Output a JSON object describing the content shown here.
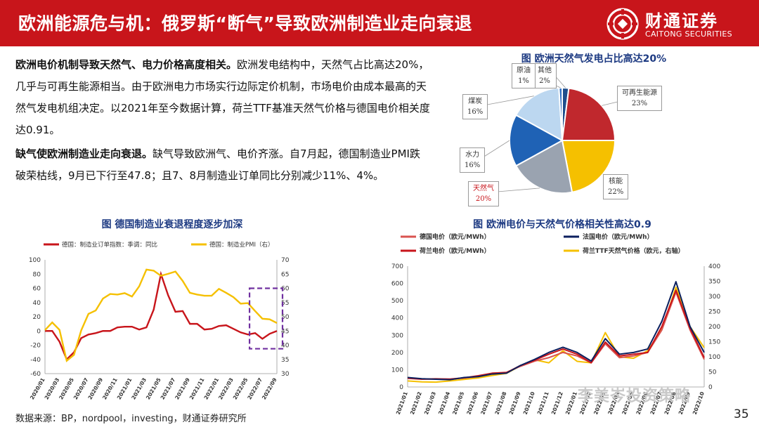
{
  "header": {
    "title": "欧洲能源危与机：俄罗斯“断气”导致欧洲制造业走向衰退",
    "logo_cn": "财通证券",
    "logo_en": "CAITONG SECURITIES"
  },
  "paragraphs": [
    {
      "lead": "欧洲电价机制导致天然气、电力价格高度相关。",
      "body": "欧洲发电结构中，天然气占比高达20%，几乎与可再生能源相当。由于欧洲电力市场实行边际定价机制，市场电价由成本最高的天然气发电机组决定。以2021年至今数据计算，荷兰TTF基准天然气价格与德国电价相关度达0.91。"
    },
    {
      "lead": "缺气使欧洲制造业走向衰退。",
      "body": "缺气导致欧洲气、电价齐涨。自7月起，德国制造业PMI跌破荣枯线，9月已下行至47.8；且7、8月制造业订单同比分别减少11%、4%。"
    }
  ],
  "captions": {
    "pie": "图 欧洲天然气发电占比高达20%",
    "germany": "图 德国制造业衰退程度逐步加深",
    "prices": "图 欧洲电价与天然气价格相关性高达0.9"
  },
  "source": "数据来源：BP，nordpool，investing，财通证券研究所",
  "page_number": "35",
  "watermark": "李美岑投资策略",
  "chart_data": [
    {
      "type": "pie",
      "title": "图 欧洲天然气发电占比高达20%",
      "slices": [
        {
          "name": "其他",
          "value": 2,
          "label": "2%",
          "color": "#1f4e8c"
        },
        {
          "name": "可再生能源",
          "value": 23,
          "label": "23%",
          "color": "#c0282d"
        },
        {
          "name": "核能",
          "value": 22,
          "label": "22%",
          "color": "#f5c000"
        },
        {
          "name": "天然气",
          "value": 20,
          "label": "20%",
          "color": "#9aa3b0"
        },
        {
          "name": "水力",
          "value": 16,
          "label": "16%",
          "color": "#1f62b5"
        },
        {
          "name": "煤炭",
          "value": 16,
          "label": "16%",
          "color": "#bcd7f0"
        },
        {
          "name": "原油",
          "value": 1,
          "label": "1%",
          "color": "#2f6fc4"
        }
      ]
    },
    {
      "type": "line",
      "title": "图 德国制造业衰退程度逐步加深",
      "x": [
        "2020/01",
        "2020/02",
        "2020/03",
        "2020/04",
        "2020/05",
        "2020/06",
        "2020/07",
        "2020/08",
        "2020/09",
        "2020/10",
        "2020/11",
        "2020/12",
        "2021/01",
        "2021/02",
        "2021/03",
        "2021/04",
        "2021/05",
        "2021/06",
        "2021/07",
        "2021/08",
        "2021/09",
        "2021/10",
        "2021/11",
        "2021/12",
        "2022/01",
        "2022/02",
        "2022/03",
        "2022/04",
        "2022/05",
        "2022/06",
        "2022/07",
        "2022/08",
        "2022/09"
      ],
      "x_tick_labels": [
        "2020/01",
        "2020/03",
        "2020/05",
        "2020/07",
        "2020/09",
        "2020/11",
        "2021/01",
        "2021/03",
        "2021/05",
        "2021/07",
        "2021/09",
        "2021/11",
        "2022/01",
        "2022/03",
        "2022/05",
        "2022/07",
        "2022/09"
      ],
      "series": [
        {
          "name": "德国：制造业订单指数：季调：同比",
          "axis": "left",
          "color": "#c8151b",
          "values": [
            0,
            0,
            -15,
            -40,
            -30,
            -10,
            -5,
            -3,
            0,
            0,
            5,
            6,
            6,
            2,
            5,
            30,
            80,
            50,
            27,
            28,
            10,
            10,
            2,
            3,
            7,
            8,
            3,
            -2,
            -5,
            -3,
            -11,
            -4,
            0
          ]
        },
        {
          "name": "德国：制造业PMI（右）",
          "axis": "right",
          "color": "#f5c000",
          "values": [
            45.3,
            48,
            45.4,
            34.5,
            36.6,
            45.2,
            51,
            52.2,
            56.4,
            58,
            57.8,
            58.3,
            57.1,
            60.7,
            66.6,
            66.2,
            64.4,
            65.1,
            65.9,
            62.6,
            58.4,
            57.8,
            57.4,
            57.4,
            59.8,
            58.4,
            56.9,
            54.6,
            54.8,
            52,
            49.3,
            49.1,
            47.8
          ]
        }
      ],
      "y_left": {
        "min": -60,
        "max": 100,
        "ticks": [
          -60,
          -40,
          -20,
          0,
          20,
          40,
          60,
          80,
          100
        ]
      },
      "y_right": {
        "min": 30,
        "max": 70,
        "ticks": [
          30,
          35,
          40,
          45,
          50,
          55,
          60,
          65,
          70
        ]
      },
      "highlight": {
        "from": "2022/06",
        "to": "2022/09",
        "color": "#7030a0"
      }
    },
    {
      "type": "line",
      "title": "图 欧洲电价与天然气价格相关性高达0.9",
      "legend": [
        "德国电价（欧元/MWh）",
        "法国电价（欧元/MWh）",
        "荷兰电价（欧元/MWh）",
        "荷兰TTF天然气价格（欧元，右轴）"
      ],
      "x_tick_labels": [
        "2021/01",
        "2021/02",
        "2021/03",
        "2021/04",
        "2021/05",
        "2021/06",
        "2021/07",
        "2021/08",
        "2021/09",
        "2021/10",
        "2021/11",
        "2021/12",
        "2022/01",
        "2022/02",
        "2022/03",
        "2022/04",
        "2022/05",
        "2022/06",
        "2022/07",
        "2022/08",
        "2022/09",
        "2022/10"
      ],
      "series": [
        {
          "name": "德国电价（欧元/MWh）",
          "axis": "left",
          "color": "#d9534f",
          "values": [
            50,
            45,
            48,
            45,
            52,
            60,
            80,
            85,
            120,
            150,
            170,
            200,
            180,
            140,
            250,
            170,
            180,
            200,
            330,
            550,
            330,
            160
          ]
        },
        {
          "name": "法国电价（欧元/MWh）",
          "axis": "left",
          "color": "#0b1f5e",
          "values": [
            55,
            48,
            45,
            42,
            55,
            60,
            75,
            80,
            125,
            160,
            200,
            230,
            200,
            150,
            280,
            190,
            200,
            220,
            380,
            610,
            350,
            200
          ]
        },
        {
          "name": "荷兰电价（欧元/MWh）",
          "axis": "left",
          "color": "#c8151b",
          "values": [
            52,
            46,
            46,
            46,
            53,
            65,
            80,
            83,
            125,
            155,
            190,
            220,
            190,
            140,
            260,
            180,
            190,
            200,
            350,
            560,
            340,
            170
          ]
        },
        {
          "name": "荷兰TTF天然气价格（欧元，右轴）",
          "axis": "right",
          "color": "#f5c000",
          "values": [
            20,
            17,
            16,
            20,
            25,
            30,
            38,
            45,
            70,
            90,
            80,
            120,
            85,
            80,
            180,
            100,
            95,
            120,
            190,
            330,
            200,
            130
          ]
        }
      ],
      "y_left": {
        "min": 0,
        "max": 700,
        "ticks": [
          0,
          100,
          200,
          300,
          400,
          500,
          600,
          700
        ]
      },
      "y_right": {
        "min": 0,
        "max": 400,
        "ticks": [
          0,
          50,
          100,
          150,
          200,
          250,
          300,
          350,
          400
        ]
      }
    }
  ]
}
